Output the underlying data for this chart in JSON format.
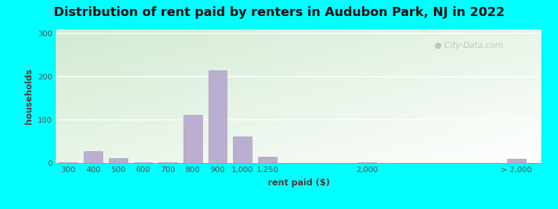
{
  "title": "Distribution of rent paid by renters in Audubon Park, NJ in 2022",
  "xlabel": "rent paid ($)",
  "ylabel": "households",
  "background_outer": "#00FFFF",
  "bar_color": "#bbaed0",
  "bar_edge_color": "#a898c0",
  "yticks": [
    0,
    100,
    200,
    300
  ],
  "ylim": [
    0,
    310
  ],
  "watermark": "City-Data.com",
  "categories": [
    "300",
    "400",
    "500",
    "600",
    "700",
    "800",
    "900",
    "1,000",
    "1,250",
    "2,000",
    "> 2,000"
  ],
  "values": [
    2,
    27,
    12,
    2,
    2,
    112,
    215,
    62,
    14,
    2,
    9
  ],
  "title_fontsize": 13,
  "axis_label_fontsize": 9,
  "tick_fontsize": 8,
  "tick_color": "#664444",
  "label_color": "#553333"
}
